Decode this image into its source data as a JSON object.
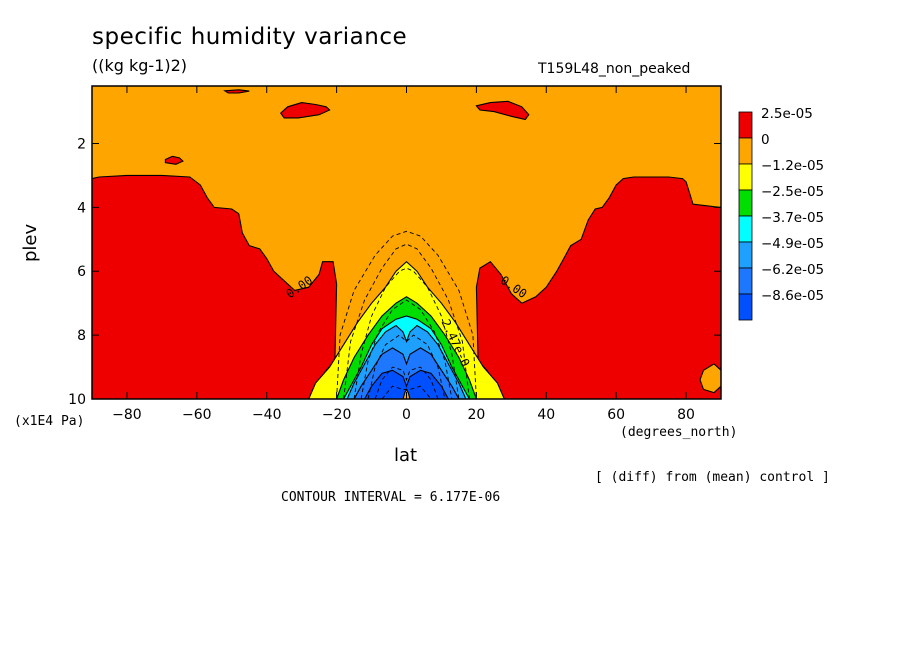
{
  "chart_data": {
    "type": "heatmap",
    "title": "specific humidity variance",
    "units": "((kg kg-1)2)",
    "run_label": "T159L48_non_peaked",
    "xlabel": "lat",
    "ylabel": "plev",
    "x_units": "(degrees_north)",
    "y_units": "(x1E4 Pa)",
    "x_ticks": [
      -80,
      -60,
      -40,
      -20,
      0,
      20,
      40,
      60,
      80
    ],
    "x_tick_labels": [
      "−80",
      "−60",
      "−40",
      "−20",
      "0",
      "20",
      "40",
      "60",
      "80"
    ],
    "y_ticks": [
      2,
      4,
      6,
      8,
      10
    ],
    "y_tick_labels": [
      "2",
      "4",
      "6",
      "8",
      "10"
    ],
    "xlim": [
      -90,
      90
    ],
    "ylim": [
      0.2,
      10
    ],
    "y_inverted": true,
    "note": "[ (diff) from (mean) control ]",
    "contour_interval": "CONTOUR INTERVAL = 6.177E-06",
    "contour_labels": [
      {
        "text": "0.00",
        "lat": -30,
        "plev": 6.6,
        "angle": -35
      },
      {
        "text": "0.00",
        "lat": 30,
        "plev": 6.6,
        "angle": 35
      },
      {
        "text": "2.47e-0",
        "lat": 13,
        "plev": 8.3,
        "angle": 65
      }
    ],
    "legend": {
      "placement": "right",
      "entries": [
        {
          "label": "2.5e-05",
          "color": "#ee0000"
        },
        {
          "label": "0",
          "color": "#ffa500"
        },
        {
          "label": "−1.2e-05",
          "color": "#ffff00"
        },
        {
          "label": "−2.5e-05",
          "color": "#00dd00"
        },
        {
          "label": "−3.7e-05",
          "color": "#00ffff"
        },
        {
          "label": "−4.9e-05",
          "color": "#1ea0ff"
        },
        {
          "label": "−6.2e-05",
          "color": "#1e78ff"
        },
        {
          "label": "−8.6e-05",
          "color": "#0050ff"
        }
      ]
    },
    "regions": [
      {
        "level": "positive",
        "color": "#ee0000",
        "points": [
          [
            -90,
            3.1
          ],
          [
            -88,
            3.05
          ],
          [
            -80,
            3.0
          ],
          [
            -70,
            3.0
          ],
          [
            -62,
            3.05
          ],
          [
            -59,
            3.3
          ],
          [
            -57,
            3.7
          ],
          [
            -55,
            4.0
          ],
          [
            -50,
            4.05
          ],
          [
            -48,
            4.2
          ],
          [
            -47,
            4.8
          ],
          [
            -45,
            5.2
          ],
          [
            -42,
            5.3
          ],
          [
            -40,
            5.6
          ],
          [
            -38,
            6.0
          ],
          [
            -35,
            6.3
          ],
          [
            -32,
            6.6
          ],
          [
            -28,
            6.5
          ],
          [
            -25,
            6.1
          ],
          [
            -24,
            5.7
          ],
          [
            -21,
            5.7
          ],
          [
            -20,
            6.4
          ],
          [
            -20.5,
            8.8
          ],
          [
            -23,
            9.1
          ],
          [
            -26,
            9.6
          ],
          [
            -28,
            10
          ],
          [
            -90,
            10
          ]
        ]
      },
      {
        "level": "positive",
        "color": "#ee0000",
        "points": [
          [
            90,
            4.0
          ],
          [
            88,
            3.98
          ],
          [
            86,
            3.95
          ],
          [
            82,
            3.9
          ],
          [
            80,
            3.2
          ],
          [
            79,
            3.1
          ],
          [
            75,
            3.05
          ],
          [
            65,
            3.05
          ],
          [
            62,
            3.1
          ],
          [
            60,
            3.3
          ],
          [
            58,
            3.7
          ],
          [
            56,
            4.0
          ],
          [
            54,
            4.05
          ],
          [
            52,
            4.4
          ],
          [
            50,
            5.0
          ],
          [
            47,
            5.2
          ],
          [
            45,
            5.6
          ],
          [
            43,
            6.0
          ],
          [
            40,
            6.5
          ],
          [
            37,
            6.8
          ],
          [
            33,
            7.0
          ],
          [
            30,
            6.7
          ],
          [
            27,
            6.1
          ],
          [
            24,
            5.7
          ],
          [
            21,
            5.9
          ],
          [
            20,
            6.5
          ],
          [
            20.5,
            8.8
          ],
          [
            23,
            9.1
          ],
          [
            26,
            9.6
          ],
          [
            28,
            10
          ],
          [
            90,
            10
          ]
        ]
      },
      {
        "level": "positive",
        "color": "#ee0000",
        "points": [
          [
            -36,
            1.05
          ],
          [
            -34,
            0.85
          ],
          [
            -30,
            0.72
          ],
          [
            -26,
            0.78
          ],
          [
            -23,
            0.85
          ],
          [
            -22,
            0.95
          ],
          [
            -25,
            1.1
          ],
          [
            -31,
            1.2
          ],
          [
            -35,
            1.2
          ]
        ]
      },
      {
        "level": "positive",
        "color": "#ee0000",
        "points": [
          [
            20,
            0.82
          ],
          [
            24,
            0.72
          ],
          [
            29,
            0.68
          ],
          [
            33,
            0.85
          ],
          [
            35,
            1.1
          ],
          [
            34,
            1.25
          ],
          [
            30,
            1.15
          ],
          [
            25,
            1.0
          ],
          [
            21,
            0.95
          ]
        ]
      },
      {
        "level": "positive",
        "color": "#ee0000",
        "points": [
          [
            -69,
            2.5
          ],
          [
            -67,
            2.4
          ],
          [
            -65,
            2.45
          ],
          [
            -64,
            2.55
          ],
          [
            -66,
            2.65
          ],
          [
            -69,
            2.6
          ]
        ]
      },
      {
        "level": "positive",
        "color": "#ee0000",
        "points": [
          [
            -52,
            0.35
          ],
          [
            -48,
            0.32
          ],
          [
            -45,
            0.36
          ],
          [
            -48,
            0.42
          ],
          [
            -51,
            0.42
          ]
        ]
      },
      {
        "level": "negative",
        "color": "#ffff00",
        "points": [
          [
            -28,
            10
          ],
          [
            -26,
            9.5
          ],
          [
            -22,
            9.0
          ],
          [
            -18,
            8.3
          ],
          [
            -14,
            7.6
          ],
          [
            -10,
            7.0
          ],
          [
            -6,
            6.5
          ],
          [
            -3,
            6.0
          ],
          [
            0,
            5.7
          ],
          [
            3,
            6.0
          ],
          [
            6,
            6.5
          ],
          [
            10,
            7.0
          ],
          [
            14,
            7.6
          ],
          [
            18,
            8.3
          ],
          [
            22,
            9.0
          ],
          [
            26,
            9.5
          ],
          [
            28,
            10
          ]
        ]
      },
      {
        "level": "negative",
        "color": "#00dd00",
        "points": [
          [
            -20,
            10
          ],
          [
            -18,
            9.4
          ],
          [
            -15,
            8.7
          ],
          [
            -11,
            8.0
          ],
          [
            -7,
            7.4
          ],
          [
            -3,
            7.0
          ],
          [
            0,
            6.8
          ],
          [
            3,
            7.0
          ],
          [
            7,
            7.4
          ],
          [
            11,
            8.0
          ],
          [
            15,
            8.7
          ],
          [
            18,
            9.4
          ],
          [
            20,
            10
          ]
        ]
      },
      {
        "level": "negative",
        "color": "#00ffff",
        "points": [
          [
            -18,
            10
          ],
          [
            -16,
            9.6
          ],
          [
            -13,
            9.0
          ],
          [
            -10,
            8.3
          ],
          [
            -7,
            7.8
          ],
          [
            -3,
            7.5
          ],
          [
            0,
            7.4
          ],
          [
            3,
            7.5
          ],
          [
            7,
            7.8
          ],
          [
            10,
            8.3
          ],
          [
            13,
            9.0
          ],
          [
            16,
            9.6
          ],
          [
            18,
            10
          ]
        ]
      },
      {
        "level": "negative",
        "color": "#1ea0ff",
        "points": [
          [
            -17,
            10
          ],
          [
            -15,
            9.5
          ],
          [
            -12,
            8.9
          ],
          [
            -9,
            8.3
          ],
          [
            -6,
            7.9
          ],
          [
            -3,
            7.7
          ],
          [
            -1,
            7.9
          ],
          [
            0,
            8.2
          ],
          [
            1,
            7.9
          ],
          [
            3,
            7.7
          ],
          [
            6,
            7.9
          ],
          [
            9,
            8.3
          ],
          [
            12,
            8.9
          ],
          [
            15,
            9.5
          ],
          [
            17,
            10
          ]
        ]
      },
      {
        "level": "negative",
        "color": "#1e78ff",
        "points": [
          [
            -15,
            10
          ],
          [
            -13,
            9.6
          ],
          [
            -10,
            9.1
          ],
          [
            -7,
            8.6
          ],
          [
            -4,
            8.4
          ],
          [
            -1,
            8.6
          ],
          [
            0,
            8.9
          ],
          [
            1,
            8.6
          ],
          [
            4,
            8.4
          ],
          [
            7,
            8.6
          ],
          [
            10,
            9.1
          ],
          [
            13,
            9.6
          ],
          [
            15,
            10
          ]
        ]
      },
      {
        "level": "negative",
        "color": "#0050ff",
        "points": [
          [
            -12,
            10
          ],
          [
            -10,
            9.6
          ],
          [
            -7,
            9.2
          ],
          [
            -4,
            9.1
          ],
          [
            -1,
            9.3
          ],
          [
            0,
            9.6
          ],
          [
            1,
            9.3
          ],
          [
            4,
            9.1
          ],
          [
            7,
            9.2
          ],
          [
            10,
            9.6
          ],
          [
            12,
            10
          ]
        ]
      },
      {
        "level": "positive",
        "color": "#ffa500",
        "points": [
          [
            -1,
            10
          ],
          [
            -0.5,
            9.8
          ],
          [
            0,
            9.7
          ],
          [
            0.5,
            9.8
          ],
          [
            1,
            10
          ]
        ]
      },
      {
        "level": "positive",
        "color": "#ffa500",
        "points": [
          [
            90,
            9.1
          ],
          [
            88,
            8.9
          ],
          [
            85,
            9.1
          ],
          [
            84,
            9.4
          ],
          [
            85,
            9.7
          ],
          [
            88,
            9.8
          ],
          [
            90,
            9.6
          ]
        ]
      }
    ],
    "dashed_contours": [
      [
        [
          -20,
          10
        ],
        [
          -19,
          8.0
        ],
        [
          -15,
          6.6
        ],
        [
          -9,
          5.5
        ],
        [
          -4,
          4.9
        ],
        [
          0,
          4.75
        ],
        [
          4,
          4.9
        ],
        [
          9,
          5.5
        ],
        [
          15,
          6.6
        ],
        [
          19,
          8.0
        ],
        [
          20,
          10
        ]
      ],
      [
        [
          -18,
          10
        ],
        [
          -16,
          8.2
        ],
        [
          -12,
          6.9
        ],
        [
          -7,
          5.9
        ],
        [
          -3,
          5.3
        ],
        [
          0,
          5.15
        ],
        [
          3,
          5.3
        ],
        [
          7,
          5.9
        ],
        [
          12,
          6.9
        ],
        [
          16,
          8.2
        ],
        [
          18,
          10
        ]
      ],
      [
        [
          -15,
          10
        ],
        [
          -13,
          8.6
        ],
        [
          -10,
          7.4
        ],
        [
          -6,
          6.5
        ],
        [
          -2,
          6.0
        ],
        [
          0,
          5.9
        ],
        [
          2,
          6.0
        ],
        [
          6,
          6.5
        ],
        [
          10,
          7.4
        ],
        [
          13,
          8.6
        ],
        [
          15,
          10
        ]
      ],
      [
        [
          -13,
          10
        ],
        [
          -11,
          8.8
        ],
        [
          -8,
          7.9
        ],
        [
          -4,
          7.2
        ],
        [
          0,
          6.9
        ],
        [
          4,
          7.2
        ],
        [
          8,
          7.9
        ],
        [
          11,
          8.8
        ],
        [
          13,
          10
        ]
      ],
      [
        [
          -11,
          10
        ],
        [
          -9,
          9.0
        ],
        [
          -6,
          8.3
        ],
        [
          -2,
          8.0
        ],
        [
          0,
          8.2
        ],
        [
          2,
          8.0
        ],
        [
          6,
          8.3
        ],
        [
          9,
          9.0
        ],
        [
          11,
          10
        ]
      ],
      [
        [
          -9,
          10
        ],
        [
          -7,
          9.4
        ],
        [
          -4,
          9.0
        ],
        [
          -1,
          9.1
        ],
        [
          0,
          9.4
        ],
        [
          1,
          9.1
        ],
        [
          4,
          9.0
        ],
        [
          7,
          9.4
        ],
        [
          9,
          10
        ]
      ],
      [
        [
          -7,
          10
        ],
        [
          -4,
          9.6
        ],
        [
          -1,
          9.7
        ],
        [
          1,
          9.7
        ],
        [
          4,
          9.6
        ],
        [
          7,
          10
        ]
      ]
    ]
  }
}
